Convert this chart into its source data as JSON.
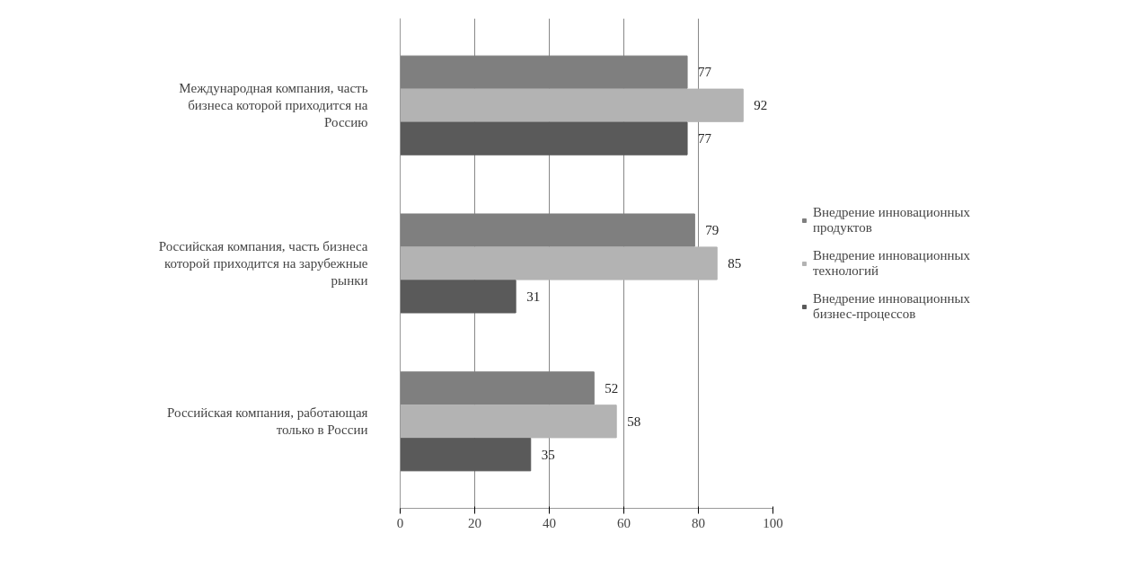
{
  "chart_data": {
    "type": "bar",
    "orientation": "horizontal",
    "categories": [
      "Международная компания, часть бизнеса которой приходится на Россию",
      "Российская компания, часть бизнеса которой приходится на зарубежные рынки",
      "Российская компания, работающая только в России"
    ],
    "series": [
      {
        "name": "Внедрение инновационных продуктов",
        "color": "#7f7f7f",
        "values": [
          77,
          79,
          52
        ]
      },
      {
        "name": "Внедрение инновационных технологий",
        "color": "#b3b3b3",
        "values": [
          92,
          85,
          58
        ]
      },
      {
        "name": "Внедрение инновационных бизнес-процессов",
        "color": "#5a5a5a",
        "values": [
          77,
          31,
          35
        ]
      }
    ],
    "xlim": [
      0,
      100
    ],
    "xticks": [
      0,
      20,
      40,
      60,
      80,
      100
    ],
    "grid": "x",
    "data_labels": true,
    "legend": "right"
  }
}
